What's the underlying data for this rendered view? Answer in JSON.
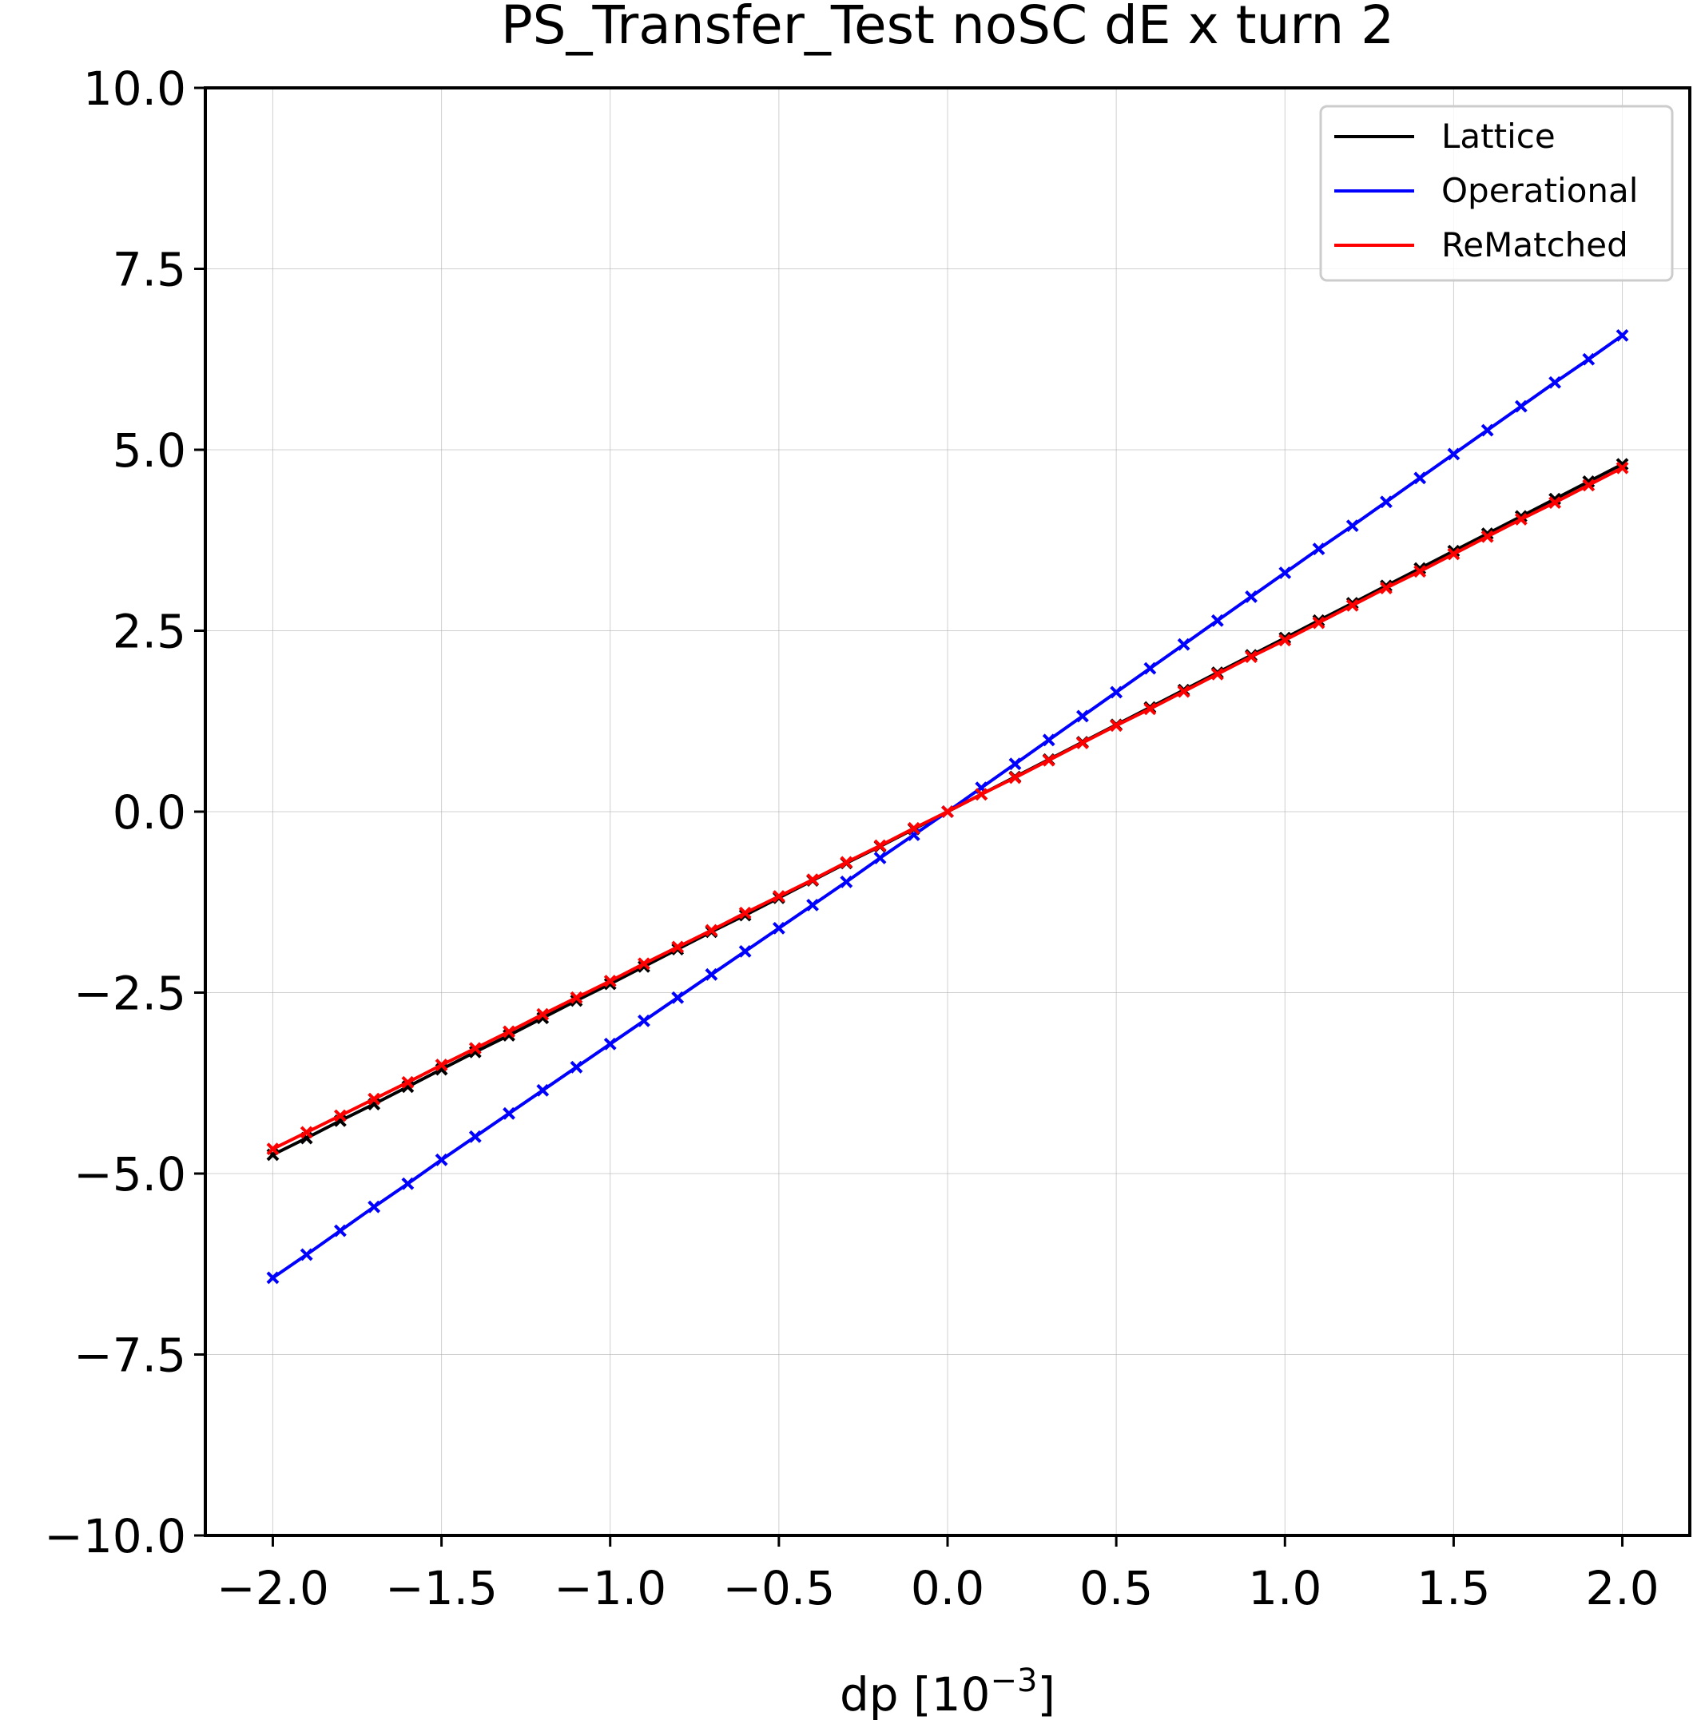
{
  "chart_data": {
    "type": "line",
    "title": "PS_Transfer_Test noSC dE x turn 2",
    "xlabel": "dp [10",
    "xlabel_sup": "−3",
    "xlabel_end": "]",
    "ylabel": "",
    "xlim": [
      -2.2,
      2.2
    ],
    "ylim": [
      -10.0,
      10.0
    ],
    "xticks": [
      -2.0,
      -1.5,
      -1.0,
      -0.5,
      0.0,
      0.5,
      1.0,
      1.5,
      2.0
    ],
    "xtick_labels": [
      "−2.0",
      "−1.5",
      "−1.0",
      "−0.5",
      "0.0",
      "0.5",
      "1.0",
      "1.5",
      "2.0"
    ],
    "yticks": [
      -10.0,
      -7.5,
      -5.0,
      -2.5,
      0.0,
      2.5,
      5.0,
      7.5,
      10.0
    ],
    "ytick_labels": [
      "−10.0",
      "−7.5",
      "−5.0",
      "−2.5",
      "0.0",
      "2.5",
      "5.0",
      "7.5",
      "10.0"
    ],
    "grid": true,
    "legend_position": "top-right",
    "marker": "x",
    "x_start": -2.0,
    "x_step": 0.1,
    "series": [
      {
        "name": "Lattice",
        "color": "#000000",
        "values": [
          -4.74,
          -4.51,
          -4.27,
          -4.04,
          -3.8,
          -3.56,
          -3.32,
          -3.09,
          -2.85,
          -2.61,
          -2.38,
          -2.14,
          -1.9,
          -1.66,
          -1.43,
          -1.19,
          -0.95,
          -0.71,
          -0.48,
          -0.24,
          0.0,
          0.24,
          0.48,
          0.72,
          0.96,
          1.2,
          1.44,
          1.68,
          1.92,
          2.16,
          2.4,
          2.64,
          2.88,
          3.12,
          3.36,
          3.6,
          3.84,
          4.08,
          4.32,
          4.56,
          4.8
        ]
      },
      {
        "name": "Operational",
        "color": "#0000ff",
        "values": [
          -6.44,
          -6.12,
          -5.79,
          -5.46,
          -5.14,
          -4.81,
          -4.49,
          -4.17,
          -3.85,
          -3.53,
          -3.21,
          -2.89,
          -2.57,
          -2.25,
          -1.93,
          -1.61,
          -1.29,
          -0.97,
          -0.64,
          -0.32,
          0.0,
          0.33,
          0.66,
          0.99,
          1.32,
          1.65,
          1.98,
          2.31,
          2.64,
          2.97,
          3.3,
          3.63,
          3.95,
          4.28,
          4.61,
          4.94,
          5.27,
          5.6,
          5.93,
          6.25,
          6.58
        ]
      },
      {
        "name": "ReMatched",
        "color": "#ff0000",
        "values": [
          -4.66,
          -4.43,
          -4.2,
          -3.97,
          -3.74,
          -3.5,
          -3.27,
          -3.04,
          -2.8,
          -2.57,
          -2.34,
          -2.1,
          -1.87,
          -1.64,
          -1.4,
          -1.17,
          -0.94,
          -0.7,
          -0.47,
          -0.23,
          0.0,
          0.24,
          0.47,
          0.71,
          0.95,
          1.19,
          1.42,
          1.66,
          1.9,
          2.14,
          2.37,
          2.61,
          2.85,
          3.09,
          3.32,
          3.56,
          3.8,
          4.04,
          4.27,
          4.51,
          4.75
        ]
      }
    ]
  }
}
